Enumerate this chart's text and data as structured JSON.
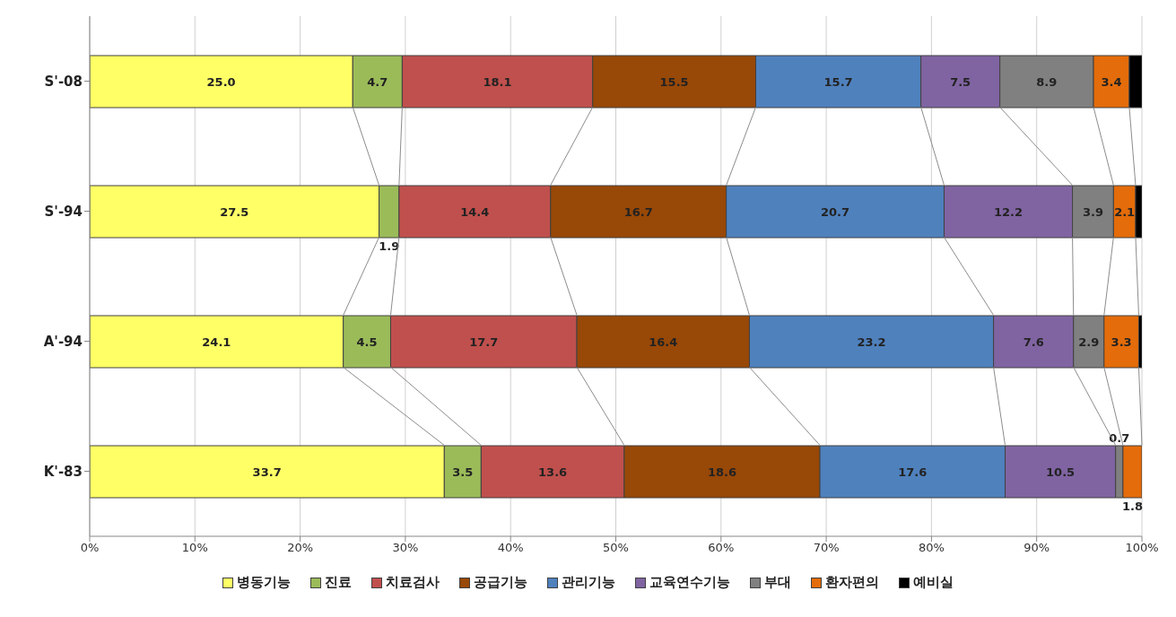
{
  "chart_data": {
    "type": "bar",
    "orientation": "horizontal",
    "stacked": true,
    "categories": [
      "S'-08",
      "S'-94",
      "A'-94",
      "K'-83"
    ],
    "series": [
      {
        "name": "병동기능",
        "color": "#ffff66",
        "values": [
          25.0,
          27.5,
          24.1,
          33.7
        ],
        "value_labels": [
          "25.0",
          "27.5",
          "24.1",
          "33.7"
        ]
      },
      {
        "name": "진료",
        "color": "#9bbb59",
        "values": [
          4.7,
          1.9,
          4.5,
          3.5
        ],
        "value_labels": [
          "4.7",
          "1.9",
          "4.5",
          "3.5"
        ]
      },
      {
        "name": "치료검사",
        "color": "#c0504d",
        "values": [
          18.1,
          14.4,
          17.7,
          13.6
        ],
        "value_labels": [
          "18.1",
          "14.4",
          "17.7",
          "13.6"
        ]
      },
      {
        "name": "공급기능",
        "color": "#984807",
        "values": [
          15.5,
          16.7,
          16.4,
          18.6
        ],
        "value_labels": [
          "15.5",
          "16.7",
          "16.4",
          "18.6"
        ]
      },
      {
        "name": "관리기능",
        "color": "#4f81bd",
        "values": [
          15.7,
          20.7,
          23.2,
          17.6
        ],
        "value_labels": [
          "15.7",
          "20.7",
          "23.2",
          "17.6"
        ]
      },
      {
        "name": "교육연수기능",
        "color": "#8064a2",
        "values": [
          7.5,
          12.2,
          7.6,
          10.5
        ],
        "value_labels": [
          "7.5",
          "12.2",
          "7.6",
          "10.5"
        ]
      },
      {
        "name": "부대",
        "color": "#808080",
        "values": [
          8.9,
          3.9,
          2.9,
          0.7
        ],
        "value_labels": [
          "8.9",
          "3.9",
          "2.9",
          "0.7"
        ]
      },
      {
        "name": "환자편의",
        "color": "#e46c0a",
        "values": [
          3.4,
          2.1,
          3.3,
          1.8
        ],
        "value_labels": [
          "3.4",
          "2.1",
          "3.3",
          "1.8"
        ]
      },
      {
        "name": "예비실",
        "color": "#000000",
        "values": [
          1.2,
          0.6,
          0.3,
          0.0
        ],
        "value_labels": [
          null,
          null,
          null,
          null
        ]
      }
    ],
    "xlim": [
      0,
      100
    ],
    "xticks": [
      {
        "value": 0,
        "label": "0%"
      },
      {
        "value": 10,
        "label": "10%"
      },
      {
        "value": 20,
        "label": "20%"
      },
      {
        "value": 30,
        "label": "30%"
      },
      {
        "value": 40,
        "label": "40%"
      },
      {
        "value": 50,
        "label": "50%"
      },
      {
        "value": 60,
        "label": "60%"
      },
      {
        "value": 70,
        "label": "70%"
      },
      {
        "value": 80,
        "label": "80%"
      },
      {
        "value": 90,
        "label": "90%"
      },
      {
        "value": 100,
        "label": "100%"
      }
    ],
    "grid": "x",
    "legend": "bottom"
  }
}
